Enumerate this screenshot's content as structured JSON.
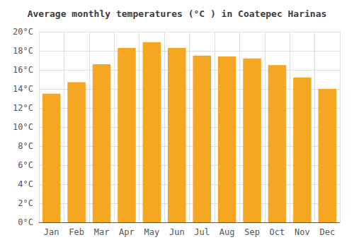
{
  "chart_data": {
    "type": "bar",
    "title": "Average monthly temperatures (°C ) in Coatepec Harinas",
    "categories": [
      "Jan",
      "Feb",
      "Mar",
      "Apr",
      "May",
      "Jun",
      "Jul",
      "Aug",
      "Sep",
      "Oct",
      "Nov",
      "Dec"
    ],
    "values": [
      13.5,
      14.7,
      16.6,
      18.3,
      18.9,
      18.3,
      17.5,
      17.4,
      17.2,
      16.5,
      15.2,
      14.0
    ],
    "color": "#F5A623",
    "ylim": [
      0,
      20
    ],
    "yticks": [
      {
        "value": 0,
        "label": "0°C"
      },
      {
        "value": 2,
        "label": "2°C"
      },
      {
        "value": 4,
        "label": "4°C"
      },
      {
        "value": 6,
        "label": "6°C"
      },
      {
        "value": 8,
        "label": "8°C"
      },
      {
        "value": 10,
        "label": "10°C"
      },
      {
        "value": 12,
        "label": "12°C"
      },
      {
        "value": 14,
        "label": "14°C"
      },
      {
        "value": 16,
        "label": "16°C"
      },
      {
        "value": 18,
        "label": "18°C"
      },
      {
        "value": 20,
        "label": "20°C"
      }
    ],
    "grid": true
  }
}
